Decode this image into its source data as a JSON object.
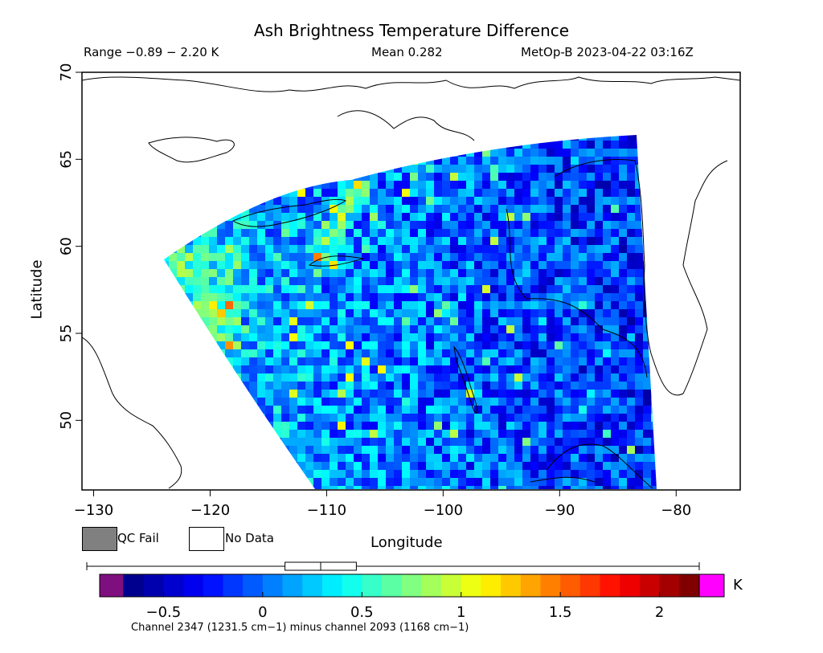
{
  "header": {
    "title": "Ash Brightness Temperature Difference",
    "range": "Range −0.89 − 2.20 K",
    "mean": "Mean 0.282",
    "satellite_time": "MetOp-B 2023-04-22 03:16Z"
  },
  "axes": {
    "xlabel": "Longitude",
    "ylabel": "Latitude",
    "x_ticks": [
      "−130",
      "−120",
      "−110",
      "−100",
      "−90",
      "−80"
    ],
    "y_ticks": [
      "50",
      "55",
      "60",
      "65",
      "70"
    ],
    "x_range": [
      -131,
      -74.5
    ],
    "y_range": [
      46,
      70
    ]
  },
  "legend": {
    "qc_fail": "QC Fail",
    "no_data": "No Data"
  },
  "colorbar": {
    "unit": "K",
    "ticks": [
      "−0.5",
      "0",
      "0.5",
      "1",
      "1.5",
      "2"
    ],
    "tick_values": [
      -0.5,
      0,
      0.5,
      1,
      1.5,
      2
    ],
    "range": [
      -0.7,
      2.2
    ],
    "caption": "Channel 2347 (1231.5 cm−1) minus channel 2093 (1168 cm−1)",
    "low_color": "#7f0f7e",
    "high_color": "#ff00ff",
    "stops": [
      "#00008f",
      "#0000ff",
      "#0080ff",
      "#00ffff",
      "#80ff80",
      "#ffff00",
      "#ff8000",
      "#ff0000",
      "#800000"
    ],
    "boxplot": {
      "whisker_low": -0.89,
      "q1": 0.11,
      "median": 0.29,
      "q3": 0.47,
      "whisker_high": 2.2
    }
  }
}
